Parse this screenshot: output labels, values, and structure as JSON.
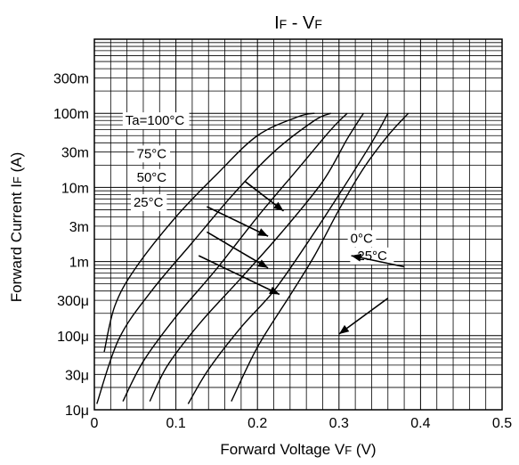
{
  "chart_data": {
    "type": "line",
    "title": "I",
    "title_sub1": "F",
    "title_mid": " - V",
    "title_sub2": "F",
    "xlabel": "Forward Voltage V",
    "xlabel_sub": "F",
    "xlabel_unit": " (V)",
    "ylabel": "Forward Current I",
    "ylabel_sub": "F",
    "ylabel_unit": " (A)",
    "x_scale": "linear",
    "y_scale": "log",
    "xlim": [
      0,
      0.5
    ],
    "ylim": [
      1e-05,
      1
    ],
    "grid": true,
    "x_ticks": [
      {
        "value": 0,
        "label": "0"
      },
      {
        "value": 0.1,
        "label": "0.1"
      },
      {
        "value": 0.2,
        "label": "0.2"
      },
      {
        "value": 0.3,
        "label": "0.3"
      },
      {
        "value": 0.4,
        "label": "0.4"
      },
      {
        "value": 0.5,
        "label": "0.5"
      }
    ],
    "y_ticks": [
      {
        "value": 1e-05,
        "label": "10μ"
      },
      {
        "value": 3e-05,
        "label": "30μ"
      },
      {
        "value": 0.0001,
        "label": "100μ"
      },
      {
        "value": 0.0003,
        "label": "300μ"
      },
      {
        "value": 0.001,
        "label": "1m"
      },
      {
        "value": 0.003,
        "label": "3m"
      },
      {
        "value": 0.01,
        "label": "10m"
      },
      {
        "value": 0.03,
        "label": "30m"
      },
      {
        "value": 0.1,
        "label": "100m"
      },
      {
        "value": 0.3,
        "label": "300m"
      }
    ],
    "series": [
      {
        "x": [
          0.012,
          0.025,
          0.05,
          0.1,
          0.15,
          0.2,
          0.25,
          0.27
        ],
        "y": [
          6e-05,
          0.00025,
          0.0008,
          0.004,
          0.015,
          0.05,
          0.09,
          0.1
        ]
      },
      {
        "x": [
          0.003,
          0.03,
          0.07,
          0.12,
          0.17,
          0.22,
          0.27,
          0.29
        ],
        "y": [
          1.2e-05,
          9e-05,
          0.0004,
          0.0018,
          0.008,
          0.03,
          0.08,
          0.1
        ]
      },
      {
        "x": [
          0.035,
          0.06,
          0.1,
          0.15,
          0.2,
          0.25,
          0.29,
          0.31
        ],
        "y": [
          1.3e-05,
          4.5e-05,
          0.00018,
          0.0008,
          0.004,
          0.018,
          0.06,
          0.1
        ]
      },
      {
        "x": [
          0.068,
          0.09,
          0.13,
          0.18,
          0.23,
          0.28,
          0.31,
          0.33
        ],
        "y": [
          1.3e-05,
          4e-05,
          0.00015,
          0.0006,
          0.0025,
          0.012,
          0.045,
          0.1
        ]
      },
      {
        "x": [
          0.115,
          0.14,
          0.18,
          0.22,
          0.26,
          0.3,
          0.34,
          0.36
        ],
        "y": [
          1.2e-05,
          3.5e-05,
          0.00013,
          0.0004,
          0.0017,
          0.008,
          0.04,
          0.1
        ]
      },
      {
        "x": [
          0.168,
          0.2,
          0.24,
          0.27,
          0.3,
          0.33,
          0.36,
          0.385
        ],
        "y": [
          1.3e-05,
          7e-05,
          0.00035,
          0.0012,
          0.005,
          0.018,
          0.05,
          0.1
        ]
      }
    ],
    "annotations": [
      {
        "text": "Ta=100°C",
        "x": 0.038,
        "y": 0.07
      },
      {
        "text": "75°C",
        "x": 0.052,
        "y": 0.025
      },
      {
        "text": "50°C",
        "x": 0.052,
        "y": 0.012
      },
      {
        "text": "25°C",
        "x": 0.048,
        "y": 0.0055
      },
      {
        "text": "0°C",
        "x": 0.314,
        "y": 0.0018
      },
      {
        "text": "-25°C",
        "x": 0.317,
        "y": 0.00105
      }
    ],
    "arrows": [
      {
        "from": [
          0.185,
          0.012
        ],
        "to": [
          0.232,
          0.0048
        ]
      },
      {
        "from": [
          0.138,
          0.0055
        ],
        "to": [
          0.213,
          0.0022
        ]
      },
      {
        "from": [
          0.138,
          0.0025
        ],
        "to": [
          0.213,
          0.00082
        ]
      },
      {
        "from": [
          0.128,
          0.0012
        ],
        "to": [
          0.227,
          0.00036
        ]
      },
      {
        "from": [
          0.38,
          0.00085
        ],
        "to": [
          0.315,
          0.0012
        ]
      },
      {
        "from": [
          0.36,
          0.00032
        ],
        "to": [
          0.3,
          0.000105
        ]
      }
    ]
  }
}
